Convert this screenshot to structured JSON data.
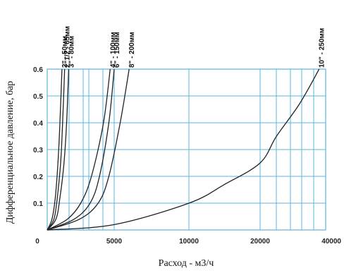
{
  "chart_data": {
    "type": "line",
    "xlabel": "Расход - м3/ч",
    "ylabel": "Дифференциальное давление, бар",
    "xlim": [
      0,
      40000
    ],
    "ylim": [
      0,
      0.6
    ],
    "x_ticks": [
      "0",
      "5000",
      "10000",
      "20000",
      "40000"
    ],
    "y_ticks": [
      "0.1",
      "0.2",
      "0.3",
      "0.4",
      "0.5",
      "0.6"
    ],
    "grid": true,
    "grid_color": "#5ab4dc",
    "line_color": "#222222",
    "series": [
      {
        "name": "2\" - 50мм",
        "points": [
          [
            0,
            0
          ],
          [
            350,
            0.04
          ],
          [
            600,
            0.12
          ],
          [
            800,
            0.25
          ],
          [
            950,
            0.4
          ],
          [
            1100,
            0.6
          ]
        ]
      },
      {
        "name": "2\"1/2 - 65мм",
        "points": [
          [
            0,
            0
          ],
          [
            500,
            0.04
          ],
          [
            750,
            0.12
          ],
          [
            1000,
            0.25
          ],
          [
            1150,
            0.4
          ],
          [
            1300,
            0.6
          ]
        ]
      },
      {
        "name": "3\" - 80мм",
        "points": [
          [
            0,
            0
          ],
          [
            650,
            0.04
          ],
          [
            950,
            0.12
          ],
          [
            1250,
            0.25
          ],
          [
            1450,
            0.4
          ],
          [
            1600,
            0.6
          ]
        ]
      },
      {
        "name": "4\" - 100мм",
        "points": [
          [
            0,
            0
          ],
          [
            1500,
            0.04
          ],
          [
            2500,
            0.1
          ],
          [
            3300,
            0.2
          ],
          [
            4200,
            0.4
          ],
          [
            4700,
            0.6
          ]
        ]
      },
      {
        "name": "6\" - 150мм",
        "points": [
          [
            0,
            0
          ],
          [
            2000,
            0.04
          ],
          [
            3200,
            0.1
          ],
          [
            3900,
            0.2
          ],
          [
            4600,
            0.4
          ],
          [
            5000,
            0.6
          ]
        ]
      },
      {
        "name": "8\" - 200мм",
        "points": [
          [
            0,
            0
          ],
          [
            2400,
            0.04
          ],
          [
            3800,
            0.1
          ],
          [
            4600,
            0.2
          ],
          [
            5400,
            0.4
          ],
          [
            6000,
            0.6
          ]
        ]
      },
      {
        "name": "10\" - 250мм",
        "points": [
          [
            0,
            0
          ],
          [
            5000,
            0.02
          ],
          [
            10000,
            0.1
          ],
          [
            15000,
            0.17
          ],
          [
            20000,
            0.25
          ],
          [
            25000,
            0.35
          ],
          [
            32000,
            0.47
          ],
          [
            38000,
            0.6
          ]
        ]
      }
    ]
  }
}
